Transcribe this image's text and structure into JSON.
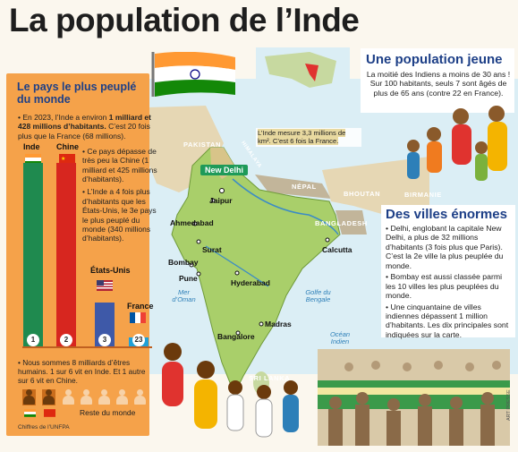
{
  "title": "La population de l’Inde",
  "left_panel": {
    "heading": "Le pays le plus peuplé du monde",
    "intro_pre": "• En 2023, l’Inde a environ ",
    "intro_bold": "1 milliard et 428 millions d’habitants.",
    "intro_post": " C’est 20 fois plus que la France (68 millions).",
    "point_china": "• Ce pays dépasse de très peu la Chine (1 milliard et 425 millions d’habitants).",
    "point_usa": "• L’Inde a 4 fois plus d’habitants que les États-Unis, le 3e pays le plus peuplé du monde (340 millions d’habitants).",
    "bars": [
      {
        "label": "Inde",
        "rank": "1",
        "value_millions": 1428,
        "color": "#1f8a4f"
      },
      {
        "label": "Chine",
        "rank": "2",
        "value_millions": 1425,
        "color": "#d7261f"
      },
      {
        "label": "États-Unis",
        "rank": "3",
        "value_millions": 340,
        "color": "#3e59a8"
      },
      {
        "label": "France",
        "rank": "23",
        "value_millions": 68,
        "color": "#1fa0d8"
      }
    ],
    "world_text": "• Nous sommes 8 milliards d’êtres humains. 1 sur 6 vit en Inde. Et 1 autre sur 6 vit en Chine.",
    "rest_label": "Reste du monde",
    "source": "Chiffres de l’UNFPA"
  },
  "young": {
    "heading": "Une population jeune",
    "text": "La moitié des Indiens a moins de 30 ans ! Sur 100 habitants, seuls 7 sont âgés de plus de 65 ans (contre 22 en France)."
  },
  "cities_box": {
    "heading": "Des villes énormes",
    "p1": "• Delhi, englobant la capitale New Delhi, a plus de 32 millions d’habitants (3 fois plus que Paris). C’est la 2e ville la plus peuplée du monde.",
    "p2": "• Bombay est aussi classée parmi les 10 villes les plus peuplées du monde.",
    "p3": "• Une cinquantaine de villes indiennes dépassent 1 million d’habitants. Les dix principales sont indiquées sur la carte."
  },
  "map": {
    "note_pre": "L’Inde mesure 3,3 millions de ",
    "note_unit": "km²",
    "note_post": ". C’est 6 fois la France.",
    "capital": "New Delhi",
    "cities": [
      "Jaipur",
      "Ahmedabad",
      "Surat",
      "Bombay",
      "Pune",
      "Hyderabad",
      "Madras",
      "Bangalore",
      "Calcutta"
    ],
    "countries": [
      "PAKISTAN",
      "NÉPAL",
      "BHOUTAN",
      "BANGLADESH",
      "BIRMANIE",
      "SRI LANKA"
    ],
    "mountains": "HIMALAYA",
    "seas": [
      "Mer d’Oman",
      "Golfe du Bengale",
      "Océan Indien"
    ]
  },
  "credit": "ART PRESSE"
}
